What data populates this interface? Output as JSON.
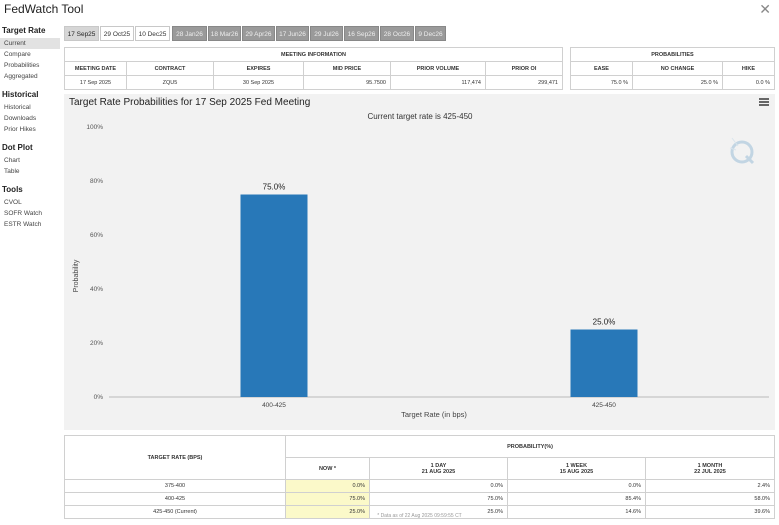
{
  "app": {
    "title": "FedWatch Tool",
    "close_icon": "close-icon"
  },
  "sidebar": [
    {
      "heading": "Target Rate",
      "items": [
        "Current",
        "Compare",
        "Probabilities",
        "Aggregated"
      ]
    },
    {
      "heading": "Historical",
      "items": [
        "Historical",
        "Downloads",
        "Prior Hikes"
      ]
    },
    {
      "heading": "Dot Plot",
      "items": [
        "Chart",
        "Table"
      ]
    },
    {
      "heading": "Tools",
      "items": [
        "CVOL",
        "SOFR Watch",
        "ESTR Watch"
      ]
    }
  ],
  "tabs": [
    "17 Sep25",
    "29 Oct25",
    "10 Dec25",
    "28 Jan26",
    "18 Mar26",
    "29 Apr26",
    "17 Jun26",
    "29 Jul26",
    "16 Sep26",
    "28 Oct26",
    "9 Dec26"
  ],
  "meeting_info": {
    "title": "MEETING INFORMATION",
    "headers": [
      "MEETING DATE",
      "CONTRACT",
      "EXPIRES",
      "MID PRICE",
      "PRIOR VOLUME",
      "PRIOR OI"
    ],
    "values": [
      "17 Sep 2025",
      "ZQU5",
      "30 Sep 2025",
      "95.7500",
      "117,474",
      "299,471"
    ]
  },
  "probabilities": {
    "title": "PROBABILITIES",
    "headers": [
      "EASE",
      "NO CHANGE",
      "HIKE"
    ],
    "values": [
      "75.0 %",
      "25.0 %",
      "0.0 %"
    ]
  },
  "chart": {
    "title": "Target Rate Probabilities for 17 Sep 2025 Fed Meeting",
    "menu_icon": "hamburger-menu-icon",
    "watermark_icon": "q-logo-icon"
  },
  "chart_data": {
    "type": "bar",
    "subtitle": "Current target rate is 425-450",
    "categories": [
      "400-425",
      "425-450"
    ],
    "values": [
      75.0,
      25.0
    ],
    "data_labels": [
      "75.0%",
      "25.0%"
    ],
    "xlabel": "Target Rate (in bps)",
    "ylabel": "Probability",
    "ylim": [
      0,
      100
    ],
    "yticks": [
      "0%",
      "20%",
      "40%",
      "60%",
      "80%",
      "100%"
    ],
    "bar_color": "#2878b8",
    "grid": false
  },
  "bottom_table": {
    "col1_header": "TARGET RATE (BPS)",
    "group_header": "PROBABILITY(%)",
    "now_header": "NOW *",
    "columns": [
      {
        "title": "1 DAY",
        "date": "21 AUG 2025"
      },
      {
        "title": "1 WEEK",
        "date": "15 AUG 2025"
      },
      {
        "title": "1 MONTH",
        "date": "22 JUL 2025"
      }
    ],
    "rows": [
      {
        "rate": "375-400",
        "now": "0.0%",
        "d1": "0.0%",
        "w1": "0.0%",
        "m1": "2.4%"
      },
      {
        "rate": "400-425",
        "now": "75.0%",
        "d1": "75.0%",
        "w1": "85.4%",
        "m1": "58.0%"
      },
      {
        "rate": "425-450 (Current)",
        "now": "25.0%",
        "d1": "25.0%",
        "w1": "14.6%",
        "m1": "39.6%"
      }
    ],
    "footnote": "* Data as of 22 Aug 2025 09:59:55 CT"
  }
}
